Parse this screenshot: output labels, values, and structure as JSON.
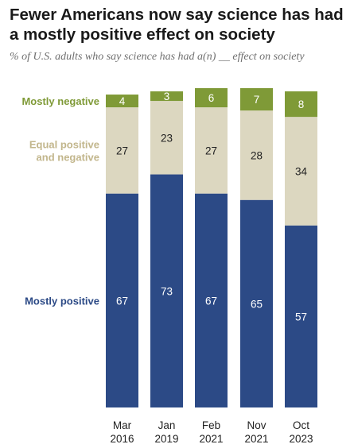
{
  "header": {
    "title": "Fewer Americans now say science has had a mostly positive effect on society",
    "subtitle": "% of U.S. adults who say science has had a(n) __ effect on society"
  },
  "chart_data": {
    "type": "bar",
    "stacked": true,
    "title": "Fewer Americans now say science has had a mostly positive effect on society",
    "subtitle": "% of U.S. adults who say science has had a(n) __ effect on society",
    "categories": [
      [
        "Mar",
        "2016"
      ],
      [
        "Jan",
        "2019"
      ],
      [
        "Feb",
        "2021"
      ],
      [
        "Nov",
        "2021"
      ],
      [
        "Oct",
        "2023"
      ]
    ],
    "series": [
      {
        "name": "Mostly positive",
        "label_lines": [
          "Mostly positive"
        ],
        "color": "#2c4a86",
        "label_color": "#2c4a86",
        "text_color": "#ffffff",
        "values": [
          67,
          73,
          67,
          65,
          57
        ]
      },
      {
        "name": "Equal positive and negative",
        "label_lines": [
          "Equal positive",
          "and negative"
        ],
        "color": "#dcd7c0",
        "label_color": "#c2b68c",
        "text_color": "#222222",
        "values": [
          27,
          23,
          27,
          28,
          34
        ]
      },
      {
        "name": "Mostly negative",
        "label_lines": [
          "Mostly negative"
        ],
        "color": "#7f9a37",
        "label_color": "#7f9a37",
        "text_color": "#ffffff",
        "values": [
          4,
          3,
          6,
          7,
          8
        ]
      }
    ],
    "ylim": [
      0,
      100
    ],
    "grid": false,
    "legend": "left, inline"
  }
}
